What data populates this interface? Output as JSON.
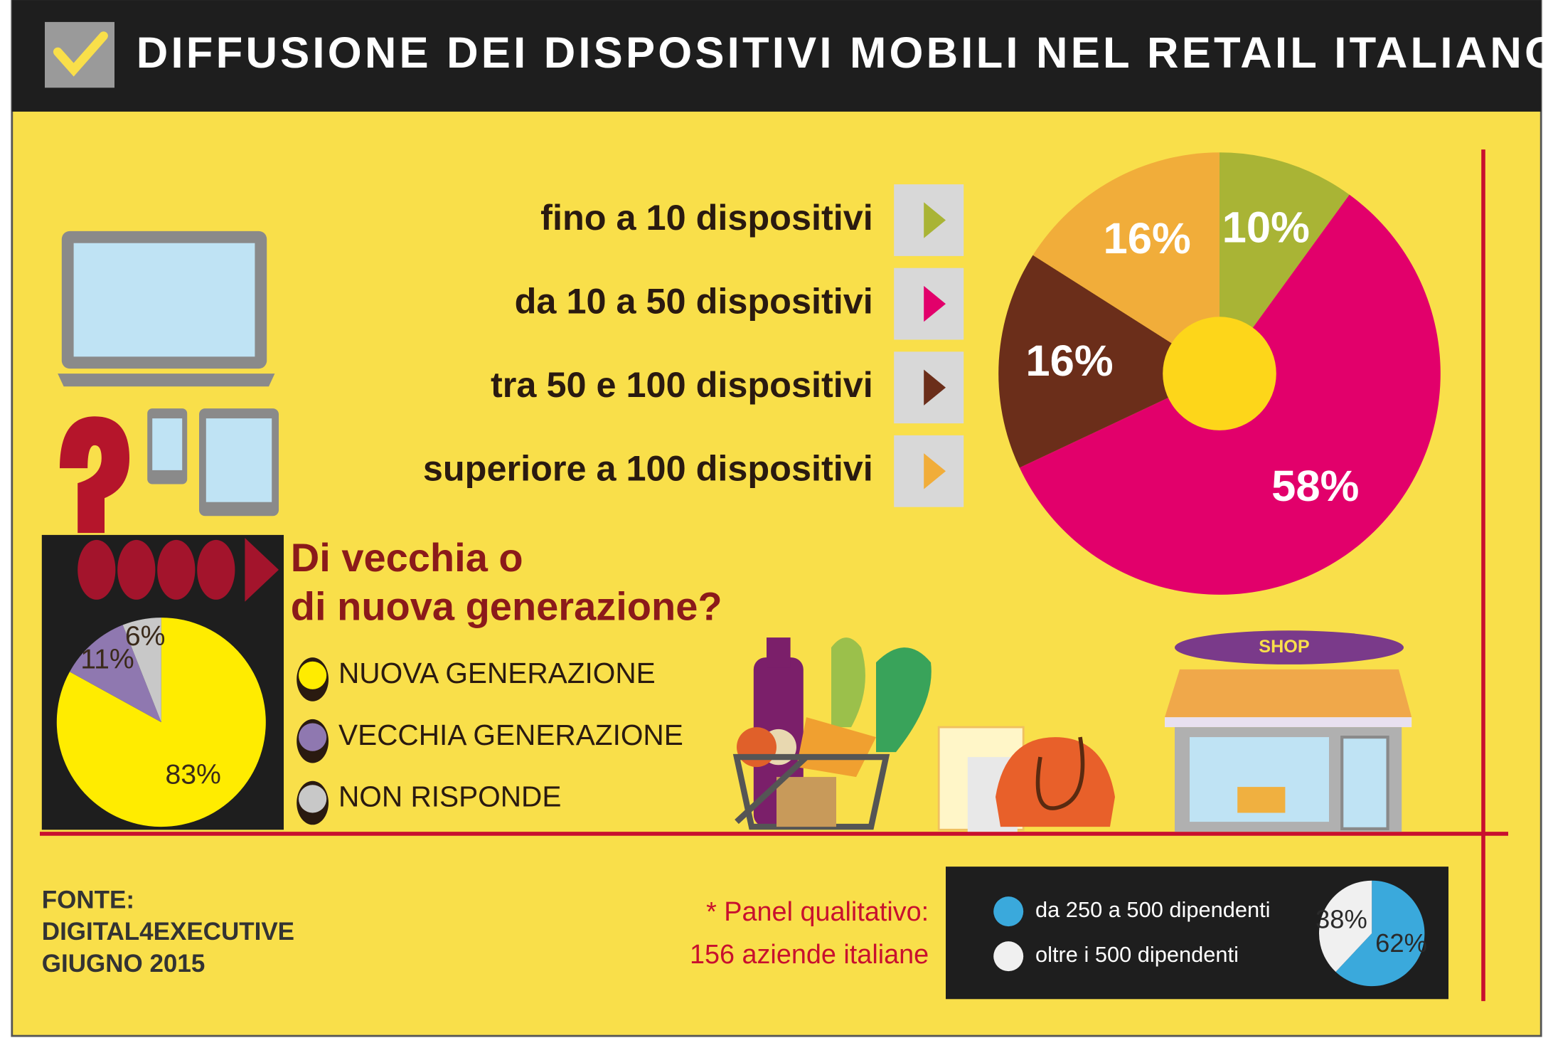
{
  "header": {
    "title": "DIFFUSIONE DEI DISPOSITIVI MOBILI NEL RETAIL ITALIANO"
  },
  "chart_data": [
    {
      "type": "pie",
      "categories": [
        "fino a 10 dispositivi",
        "da 10 a 50 dispositivi",
        "tra 50 e 100 dispositivi",
        "superiore a 100 dispositivi"
      ],
      "values": [
        10,
        58,
        16,
        16
      ],
      "value_labels": [
        "10%",
        "58%",
        "16%",
        "16%"
      ],
      "colors": [
        "#a9b435",
        "#e2006b",
        "#6b2e1a",
        "#f1ad3a"
      ]
    },
    {
      "type": "pie",
      "title_lines": [
        "Di vecchia o",
        "di nuova generazione?"
      ],
      "categories": [
        "NUOVA GENERAZIONE",
        "VECCHIA GENERAZIONE",
        "NON RISPONDE"
      ],
      "values": [
        83,
        11,
        6
      ],
      "value_labels": [
        "83%",
        "11%",
        "6%"
      ],
      "colors": [
        "#ffec00",
        "#8f78b0",
        "#c8c8c8"
      ]
    },
    {
      "type": "pie",
      "categories": [
        "da 250 a 500 dipendenti",
        "oltre i 500 dipendenti"
      ],
      "values": [
        62,
        38
      ],
      "value_labels": [
        "62%",
        "38%"
      ],
      "colors": [
        "#3aa9dc",
        "#f0f0f0"
      ]
    }
  ],
  "illustrations": {
    "shop_sign": "SHOP"
  },
  "footer": {
    "source_lines": [
      "FONTE:",
      "DIGITAL4EXECUTIVE",
      "GIUGNO 2015"
    ],
    "note_lines": [
      "* Panel qualitativo:",
      "156 aziende italiane"
    ]
  }
}
